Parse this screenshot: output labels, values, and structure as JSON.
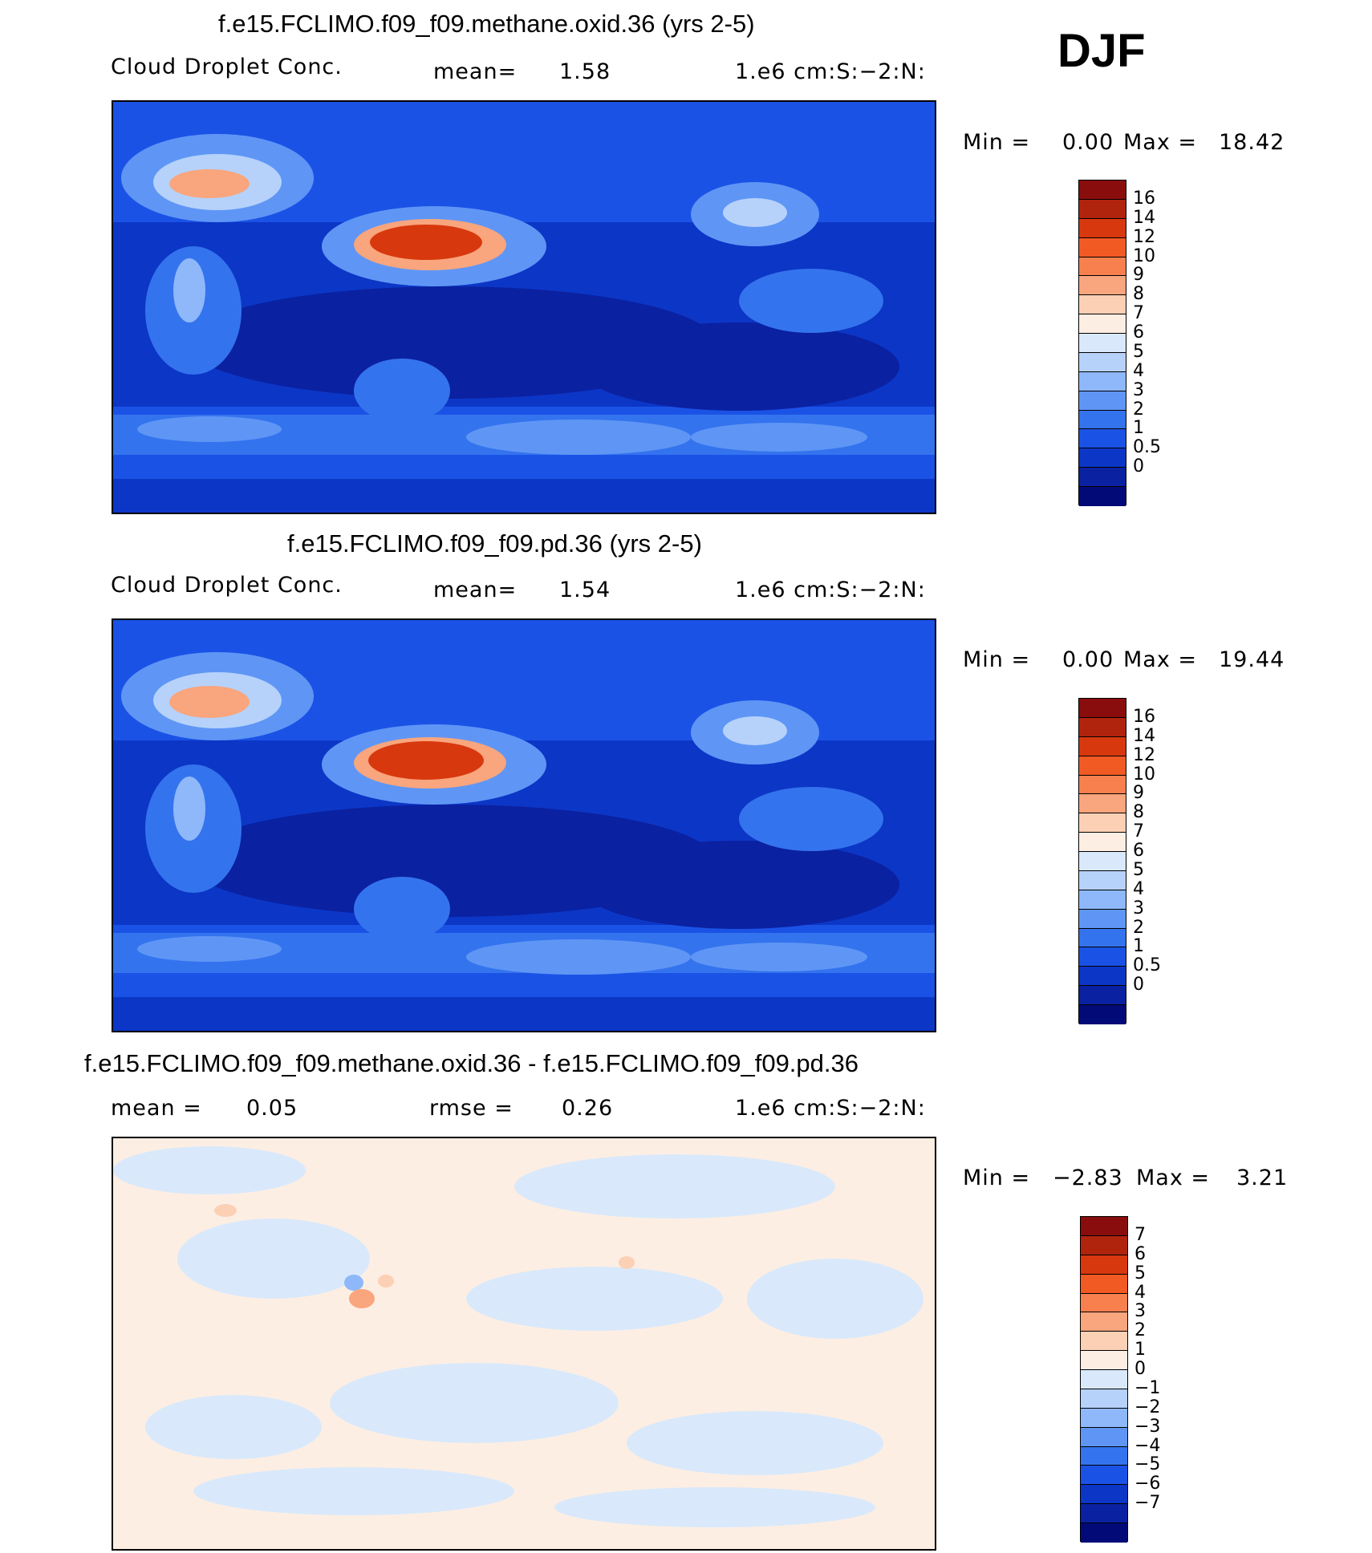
{
  "season": "DJF",
  "panels": [
    {
      "title": "f.e15.FCLIMO.f09_f09.methane.oxid.36 (yrs 2-5)",
      "variable": "Cloud Droplet Conc.",
      "mean_label": "mean=",
      "mean_value": "1.58",
      "units": "1.e6 cm:S:−2:N:",
      "min_label": "Min =",
      "min_value": "0.00",
      "max_label": "Max =",
      "max_value": "18.42",
      "colorbar": {
        "colors": [
          "#8a0d0d",
          "#b0240e",
          "#d8380e",
          "#f25a24",
          "#f7804e",
          "#f9a57d",
          "#fcd0b5",
          "#fdeee3",
          "#d9e9fb",
          "#b6d2fb",
          "#8fb8fa",
          "#5f96f5",
          "#3473ee",
          "#1b52e6",
          "#0c36c6",
          "#0a21a1",
          "#020a78"
        ],
        "labels": [
          "16",
          "14",
          "12",
          "10",
          "9",
          "8",
          "7",
          "6",
          "5",
          "4",
          "3",
          "2",
          "1",
          "0.5",
          "0"
        ]
      }
    },
    {
      "title": "f.e15.FCLIMO.f09_f09.pd.36 (yrs 2-5)",
      "variable": "Cloud Droplet Conc.",
      "mean_label": "mean=",
      "mean_value": "1.54",
      "units": "1.e6 cm:S:−2:N:",
      "min_label": "Min =",
      "min_value": "0.00",
      "max_label": "Max =",
      "max_value": "19.44",
      "colorbar": {
        "colors": [
          "#8a0d0d",
          "#b0240e",
          "#d8380e",
          "#f25a24",
          "#f7804e",
          "#f9a57d",
          "#fcd0b5",
          "#fdeee3",
          "#d9e9fb",
          "#b6d2fb",
          "#8fb8fa",
          "#5f96f5",
          "#3473ee",
          "#1b52e6",
          "#0c36c6",
          "#0a21a1",
          "#020a78"
        ],
        "labels": [
          "16",
          "14",
          "12",
          "10",
          "9",
          "8",
          "7",
          "6",
          "5",
          "4",
          "3",
          "2",
          "1",
          "0.5",
          "0"
        ]
      }
    },
    {
      "title": "f.e15.FCLIMO.f09_f09.methane.oxid.36 - f.e15.FCLIMO.f09_f09.pd.36",
      "mean_label": "mean =",
      "mean_value": "0.05",
      "rmse_label": "rmse =",
      "rmse_value": "0.26",
      "units": "1.e6 cm:S:−2:N:",
      "min_label": "Min =",
      "min_value": "−2.83",
      "max_label": "Max =",
      "max_value": "3.21",
      "colorbar": {
        "colors": [
          "#8a0d0d",
          "#b0240e",
          "#d8380e",
          "#f25a24",
          "#f7804e",
          "#f9a57d",
          "#fcd0b5",
          "#fdeee3",
          "#d9e9fb",
          "#b6d2fb",
          "#8fb8fa",
          "#5f96f5",
          "#3473ee",
          "#1b52e6",
          "#0c36c6",
          "#0a21a1",
          "#020a78"
        ],
        "labels": [
          "7",
          "6",
          "5",
          "4",
          "3",
          "2",
          "1",
          "0",
          "−1",
          "−2",
          "−3",
          "−4",
          "−5",
          "−6",
          "−7"
        ]
      }
    }
  ]
}
